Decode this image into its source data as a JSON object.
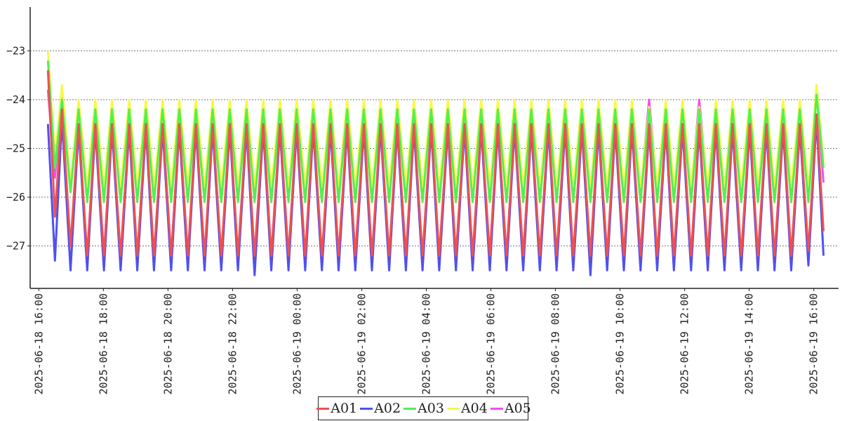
{
  "chart_data": {
    "type": "line",
    "title": "",
    "xlabel": "",
    "ylabel": "",
    "ylim": [
      -27.87,
      -22.1
    ],
    "xlim": [
      "2025-06-18 15:44",
      "2025-06-19 16:46"
    ],
    "grid": "horizontal dotted",
    "legend_position": "bottom",
    "yticks": [
      -23,
      -24,
      -25,
      -26,
      -27
    ],
    "ytick_labels": [
      "−23",
      "−24",
      "−25",
      "−26",
      "−27"
    ],
    "xticks": [
      "2025-06-18 16:00",
      "2025-06-18 18:00",
      "2025-06-18 20:00",
      "2025-06-18 22:00",
      "2025-06-19 00:00",
      "2025-06-19 02:00",
      "2025-06-19 04:00",
      "2025-06-19 06:00",
      "2025-06-19 08:00",
      "2025-06-19 10:00",
      "2025-06-19 12:00",
      "2025-06-19 14:00",
      "2025-06-19 16:00"
    ],
    "x": [
      "2025-06-18 16:17",
      "2025-06-18 16:30",
      "2025-06-18 16:43",
      "2025-06-18 16:59",
      "2025-06-18 17:14",
      "2025-06-18 17:30",
      "2025-06-18 17:45",
      "2025-06-18 18:01",
      "2025-06-18 18:16",
      "2025-06-18 18:32",
      "2025-06-18 18:48",
      "2025-06-18 19:03",
      "2025-06-18 19:19",
      "2025-06-18 19:34",
      "2025-06-18 19:50",
      "2025-06-18 20:06",
      "2025-06-18 20:21",
      "2025-06-18 20:37",
      "2025-06-18 20:52",
      "2025-06-18 21:08",
      "2025-06-18 21:23",
      "2025-06-18 21:39",
      "2025-06-18 21:55",
      "2025-06-18 22:10",
      "2025-06-18 22:26",
      "2025-06-18 22:41",
      "2025-06-18 22:57",
      "2025-06-18 23:12",
      "2025-06-18 23:28",
      "2025-06-18 23:44",
      "2025-06-18 23:59",
      "2025-06-19 00:15",
      "2025-06-19 00:30",
      "2025-06-19 00:46",
      "2025-06-19 01:02",
      "2025-06-19 01:17",
      "2025-06-19 01:33",
      "2025-06-19 01:48",
      "2025-06-19 02:04",
      "2025-06-19 02:19",
      "2025-06-19 02:35",
      "2025-06-19 02:51",
      "2025-06-19 03:06",
      "2025-06-19 03:22",
      "2025-06-19 03:37",
      "2025-06-19 03:53",
      "2025-06-19 04:09",
      "2025-06-19 04:24",
      "2025-06-19 04:40",
      "2025-06-19 04:55",
      "2025-06-19 05:11",
      "2025-06-19 05:26",
      "2025-06-19 05:42",
      "2025-06-19 05:58",
      "2025-06-19 06:13",
      "2025-06-19 06:29",
      "2025-06-19 06:44",
      "2025-06-19 07:00",
      "2025-06-19 07:15",
      "2025-06-19 07:31",
      "2025-06-19 07:47",
      "2025-06-19 08:02",
      "2025-06-19 08:18",
      "2025-06-19 08:33",
      "2025-06-19 08:49",
      "2025-06-19 09:05",
      "2025-06-19 09:20",
      "2025-06-19 09:36",
      "2025-06-19 09:51",
      "2025-06-19 10:07",
      "2025-06-19 10:22",
      "2025-06-19 10:38",
      "2025-06-19 10:54",
      "2025-06-19 11:09",
      "2025-06-19 11:25",
      "2025-06-19 11:40",
      "2025-06-19 11:56",
      "2025-06-19 12:12",
      "2025-06-19 12:27",
      "2025-06-19 12:43",
      "2025-06-19 12:58",
      "2025-06-19 13:14",
      "2025-06-19 13:29",
      "2025-06-19 13:45",
      "2025-06-19 14:01",
      "2025-06-19 14:16",
      "2025-06-19 14:32",
      "2025-06-19 14:47",
      "2025-06-19 15:03",
      "2025-06-19 15:18",
      "2025-06-19 15:34",
      "2025-06-19 15:50",
      "2025-06-19 16:05",
      "2025-06-19 16:18"
    ],
    "series": [
      {
        "name": "A05",
        "color": "#f050f0",
        "values": [
          -23.8,
          -25.6,
          -23.9,
          -25.8,
          -24.1,
          -25.9,
          -24.1,
          -25.9,
          -24.1,
          -25.9,
          -24.1,
          -25.9,
          -24.1,
          -25.9,
          -24.1,
          -25.9,
          -24.1,
          -25.9,
          -24.1,
          -25.9,
          -24.1,
          -25.9,
          -24.1,
          -25.9,
          -24.1,
          -25.9,
          -24.1,
          -25.9,
          -24.1,
          -25.9,
          -24.1,
          -25.9,
          -24.1,
          -25.9,
          -24.1,
          -25.9,
          -24.1,
          -25.9,
          -24.1,
          -25.9,
          -24.1,
          -25.9,
          -24.1,
          -25.9,
          -24.1,
          -25.9,
          -24.1,
          -25.9,
          -24.1,
          -25.9,
          -24.1,
          -25.9,
          -24.1,
          -25.9,
          -24.1,
          -25.9,
          -24.1,
          -25.9,
          -24.1,
          -25.9,
          -24.1,
          -25.9,
          -24.1,
          -25.9,
          -24.1,
          -25.9,
          -24.1,
          -25.9,
          -24.1,
          -25.9,
          -24.1,
          -25.9,
          -24.0,
          -25.9,
          -24.1,
          -25.9,
          -24.1,
          -25.9,
          -24.0,
          -25.9,
          -24.1,
          -25.9,
          -24.1,
          -25.9,
          -24.1,
          -25.9,
          -24.1,
          -25.9,
          -24.1,
          -25.9,
          -24.1,
          -25.9,
          -23.8,
          -25.7
        ]
      },
      {
        "name": "A04",
        "color": "#f8f850",
        "values": [
          -23.0,
          -25.2,
          -23.7,
          -25.7,
          -24.0,
          -25.8,
          -24.0,
          -25.8,
          -24.0,
          -25.8,
          -24.0,
          -25.8,
          -24.0,
          -25.8,
          -24.0,
          -25.8,
          -24.0,
          -25.8,
          -24.0,
          -25.8,
          -24.0,
          -25.8,
          -24.0,
          -25.8,
          -24.0,
          -25.8,
          -24.0,
          -25.8,
          -24.0,
          -25.8,
          -24.0,
          -25.8,
          -24.0,
          -25.8,
          -24.0,
          -25.8,
          -24.0,
          -25.8,
          -24.0,
          -25.8,
          -24.0,
          -25.8,
          -24.0,
          -25.8,
          -24.0,
          -25.8,
          -24.0,
          -25.8,
          -24.0,
          -25.8,
          -24.0,
          -25.8,
          -24.0,
          -25.8,
          -24.0,
          -25.8,
          -24.0,
          -25.8,
          -24.0,
          -25.8,
          -24.0,
          -25.8,
          -24.0,
          -25.8,
          -24.0,
          -25.8,
          -24.0,
          -25.8,
          -24.0,
          -25.8,
          -24.0,
          -25.8,
          -24.15,
          -25.8,
          -24.0,
          -25.8,
          -24.0,
          -25.8,
          -24.15,
          -25.8,
          -24.0,
          -25.8,
          -24.0,
          -25.8,
          -24.0,
          -25.8,
          -24.0,
          -25.8,
          -24.0,
          -25.8,
          -24.0,
          -25.8,
          -23.7,
          -25.3
        ]
      },
      {
        "name": "A03",
        "color": "#50f050",
        "values": [
          -23.2,
          -25.4,
          -24.0,
          -25.9,
          -24.2,
          -26.1,
          -24.2,
          -26.1,
          -24.2,
          -26.1,
          -24.2,
          -26.1,
          -24.2,
          -26.1,
          -24.2,
          -26.1,
          -24.2,
          -26.1,
          -24.2,
          -26.1,
          -24.2,
          -26.1,
          -24.2,
          -26.1,
          -24.2,
          -26.1,
          -24.2,
          -26.1,
          -24.2,
          -26.1,
          -24.2,
          -26.1,
          -24.2,
          -26.1,
          -24.2,
          -26.1,
          -24.2,
          -26.1,
          -24.2,
          -26.1,
          -24.2,
          -26.1,
          -24.2,
          -26.1,
          -24.2,
          -26.1,
          -24.2,
          -26.1,
          -24.2,
          -26.1,
          -24.2,
          -26.1,
          -24.2,
          -26.1,
          -24.2,
          -26.1,
          -24.2,
          -26.1,
          -24.2,
          -26.1,
          -24.2,
          -26.1,
          -24.2,
          -26.1,
          -24.2,
          -26.1,
          -24.2,
          -26.1,
          -24.2,
          -26.1,
          -24.2,
          -26.1,
          -24.2,
          -26.1,
          -24.2,
          -26.1,
          -24.2,
          -26.1,
          -24.2,
          -26.1,
          -24.2,
          -26.1,
          -24.2,
          -26.1,
          -24.2,
          -26.1,
          -24.2,
          -26.1,
          -24.2,
          -26.1,
          -24.2,
          -26.1,
          -23.9,
          -25.4
        ]
      },
      {
        "name": "A02",
        "color": "#5050f0",
        "values": [
          -24.5,
          -27.3,
          -24.4,
          -27.5,
          -24.6,
          -27.5,
          -24.6,
          -27.5,
          -24.6,
          -27.5,
          -24.6,
          -27.5,
          -24.6,
          -27.5,
          -24.6,
          -27.5,
          -24.6,
          -27.5,
          -24.6,
          -27.5,
          -24.6,
          -27.5,
          -24.6,
          -27.5,
          -24.6,
          -27.6,
          -24.6,
          -27.5,
          -24.6,
          -27.5,
          -24.6,
          -27.5,
          -24.6,
          -27.5,
          -24.6,
          -27.5,
          -24.6,
          -27.5,
          -24.6,
          -27.5,
          -24.6,
          -27.5,
          -24.6,
          -27.5,
          -24.6,
          -27.5,
          -24.6,
          -27.5,
          -24.6,
          -27.5,
          -24.6,
          -27.5,
          -24.6,
          -27.5,
          -24.6,
          -27.5,
          -24.6,
          -27.5,
          -24.6,
          -27.5,
          -24.6,
          -27.5,
          -24.6,
          -27.5,
          -24.6,
          -27.6,
          -24.6,
          -27.5,
          -24.6,
          -27.5,
          -24.6,
          -27.5,
          -24.6,
          -27.5,
          -24.6,
          -27.5,
          -24.6,
          -27.5,
          -24.6,
          -27.5,
          -24.6,
          -27.5,
          -24.6,
          -27.5,
          -24.6,
          -27.5,
          -24.6,
          -27.5,
          -24.6,
          -27.5,
          -24.6,
          -27.4,
          -24.4,
          -27.2
        ]
      },
      {
        "name": "A01",
        "color": "#f05050",
        "values": [
          -23.4,
          -26.4,
          -24.2,
          -27.0,
          -24.5,
          -27.2,
          -24.5,
          -27.2,
          -24.5,
          -27.2,
          -24.5,
          -27.2,
          -24.5,
          -27.2,
          -24.5,
          -27.2,
          -24.5,
          -27.2,
          -24.5,
          -27.2,
          -24.5,
          -27.2,
          -24.5,
          -27.2,
          -24.5,
          -27.2,
          -24.5,
          -27.2,
          -24.5,
          -27.2,
          -24.5,
          -27.2,
          -24.5,
          -27.2,
          -24.5,
          -27.2,
          -24.5,
          -27.2,
          -24.5,
          -27.2,
          -24.5,
          -27.2,
          -24.5,
          -27.2,
          -24.5,
          -27.2,
          -24.5,
          -27.2,
          -24.5,
          -27.2,
          -24.5,
          -27.2,
          -24.5,
          -27.2,
          -24.5,
          -27.2,
          -24.5,
          -27.2,
          -24.5,
          -27.2,
          -24.5,
          -27.2,
          -24.5,
          -27.2,
          -24.5,
          -27.2,
          -24.5,
          -27.2,
          -24.5,
          -27.2,
          -24.5,
          -27.2,
          -24.5,
          -27.2,
          -24.5,
          -27.2,
          -24.5,
          -27.2,
          -24.5,
          -27.2,
          -24.5,
          -27.2,
          -24.5,
          -27.2,
          -24.5,
          -27.2,
          -24.5,
          -27.2,
          -24.5,
          -27.2,
          -24.5,
          -27.1,
          -24.3,
          -26.7
        ]
      }
    ],
    "legend": [
      {
        "label": "A01",
        "color": "#f05050"
      },
      {
        "label": "A02",
        "color": "#5050f0"
      },
      {
        "label": "A03",
        "color": "#50f050"
      },
      {
        "label": "A04",
        "color": "#f8f850"
      },
      {
        "label": "A05",
        "color": "#f050f0"
      }
    ]
  }
}
